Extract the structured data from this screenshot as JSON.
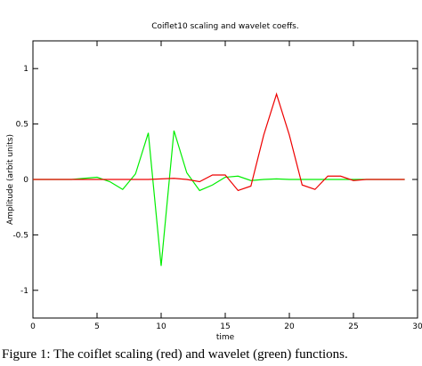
{
  "chart_data": {
    "type": "line",
    "title": "Coiflet10 scaling and wavelet coeffs.",
    "x_label": "time",
    "y_label": "Amplitude (arbit units)",
    "caption": "Figure 1: The coiflet scaling (red) and wavelet (green) functions.",
    "x": [
      0,
      1,
      2,
      3,
      4,
      5,
      6,
      7,
      8,
      9,
      10,
      11,
      12,
      13,
      14,
      15,
      16,
      17,
      18,
      19,
      20,
      21,
      22,
      23,
      24,
      25,
      26,
      27,
      28,
      29
    ],
    "series": [
      {
        "name": "wavelet",
        "color": "#00ee00",
        "values": [
          0,
          0,
          0,
          0,
          0.01,
          0.02,
          -0.02,
          -0.09,
          0.05,
          0.42,
          -0.78,
          0.44,
          0.06,
          -0.1,
          -0.05,
          0.02,
          0.03,
          -0.01,
          0,
          0.005,
          0,
          0,
          0,
          0,
          0,
          0,
          0,
          0,
          0,
          0
        ]
      },
      {
        "name": "scaling",
        "color": "#ee0000",
        "values": [
          0,
          0,
          0,
          0,
          0,
          0,
          0,
          0,
          0,
          0,
          0.005,
          0.01,
          0,
          -0.02,
          0.04,
          0.04,
          -0.1,
          -0.06,
          0.4,
          0.77,
          0.4,
          -0.05,
          -0.09,
          0.03,
          0.03,
          -0.01,
          0,
          0,
          0,
          0
        ]
      }
    ],
    "xlim": [
      0,
      30
    ],
    "xticks": [
      0,
      5,
      10,
      15,
      20,
      25,
      30
    ],
    "ylim": [
      -1.25,
      1.25
    ],
    "yticks": [
      -1,
      -0.5,
      0,
      0.5,
      1
    ],
    "grid": false
  }
}
